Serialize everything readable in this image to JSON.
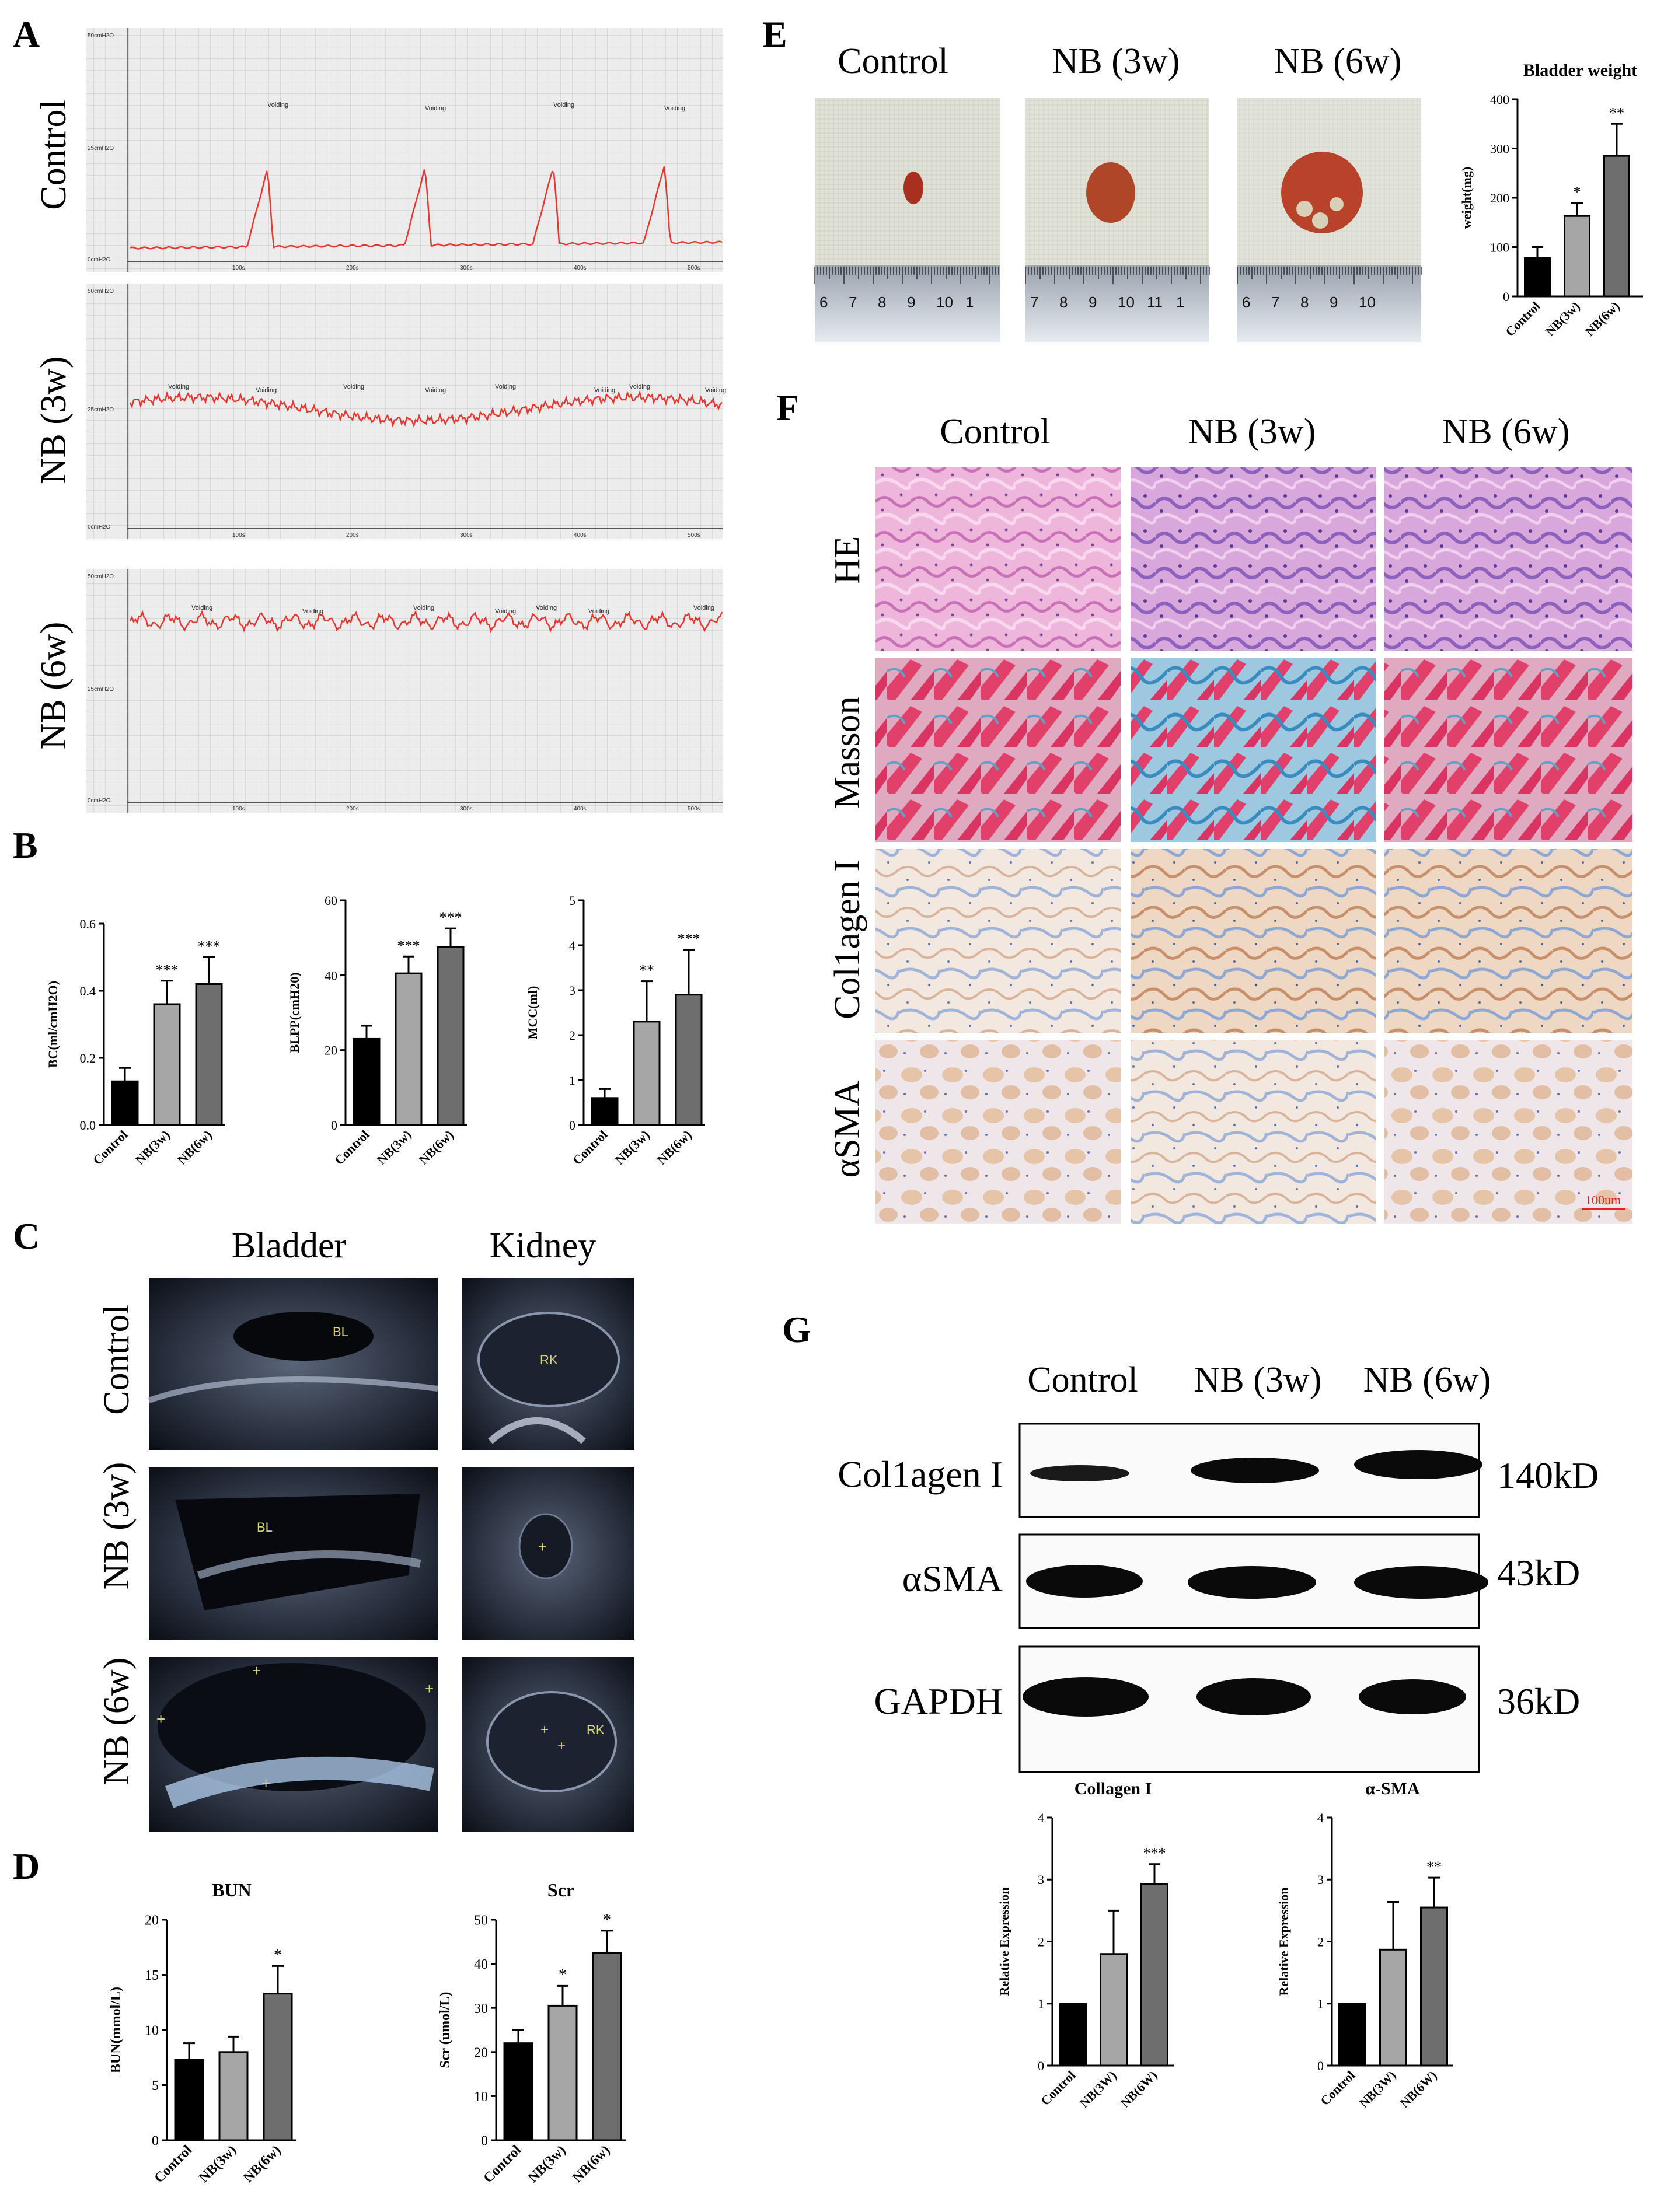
{
  "panel_letters": [
    "A",
    "B",
    "C",
    "D",
    "E",
    "F",
    "G"
  ],
  "colors": {
    "control": "#000000",
    "nb3w": "#a6a6a6",
    "nb6w": "#6e6e6e",
    "trace": "#e8362e",
    "grid_bg": "#ececec",
    "grid_line": "#b4b4b4"
  },
  "panel_a": {
    "rows": [
      "Control",
      "NB (3w)",
      "NB (6w)"
    ],
    "y_ticks": [
      "50cmH2O",
      "25cmH2O",
      "0cmH2O"
    ],
    "x_ticks": [
      "100s",
      "200s",
      "300s",
      "400s",
      "500s"
    ],
    "event_label": "Voiding"
  },
  "panel_c": {
    "columns": [
      "Bladder",
      "Kidney"
    ],
    "rows": [
      "Control",
      "NB (3w)",
      "NB (6w)"
    ],
    "labels": [
      "BL",
      "RK",
      "BL",
      "RK"
    ]
  },
  "panel_e": {
    "columns": [
      "Control",
      "NB (3w)",
      "NB (6w)"
    ],
    "ruler_ticks": [
      [
        "6",
        "7",
        "8",
        "9",
        "10",
        "1"
      ],
      [
        "7",
        "8",
        "9",
        "10",
        "11",
        "1"
      ],
      [
        "6",
        "7",
        "8",
        "9",
        "10"
      ]
    ]
  },
  "panel_f": {
    "columns": [
      "Control",
      "NB (3w)",
      "NB (6w)"
    ],
    "rows": [
      "HE",
      "Masson",
      "Col1agen I",
      "αSMA"
    ],
    "scale_bar": "100um"
  },
  "panel_g": {
    "columns": [
      "Control",
      "NB (3w)",
      "NB (6w)"
    ],
    "proteins": [
      "Col1agen I",
      "αSMA",
      "GAPDH"
    ],
    "sizes": [
      "140kD",
      "43kD",
      "36kD"
    ]
  },
  "chart_data": [
    {
      "id": "bc",
      "panel": "B",
      "type": "bar",
      "title": "",
      "ylabel": "BC(ml/cmH2O)",
      "categories": [
        "Control",
        "NB(3w)",
        "NB(6w)"
      ],
      "values": [
        0.13,
        0.36,
        0.42
      ],
      "errors": [
        0.04,
        0.07,
        0.08
      ],
      "sig": [
        "",
        "***",
        "***"
      ],
      "ylim": [
        0,
        0.6
      ],
      "yticks": [
        "0.0",
        "0.2",
        "0.4",
        "0.6"
      ]
    },
    {
      "id": "blpp",
      "panel": "B",
      "type": "bar",
      "title": "",
      "ylabel": "BLPP(cmH20)",
      "categories": [
        "Control",
        "NB(3w)",
        "NB(6w)"
      ],
      "values": [
        23,
        40.5,
        47.5
      ],
      "errors": [
        3.5,
        4.5,
        5
      ],
      "sig": [
        "",
        "***",
        "***"
      ],
      "ylim": [
        0,
        60
      ],
      "yticks": [
        "0",
        "20",
        "40",
        "60"
      ]
    },
    {
      "id": "mcc",
      "panel": "B",
      "type": "bar",
      "title": "",
      "ylabel": "MCC(ml)",
      "categories": [
        "Control",
        "NB(3w)",
        "NB(6w)"
      ],
      "values": [
        0.6,
        2.3,
        2.9
      ],
      "errors": [
        0.2,
        0.9,
        1.0
      ],
      "sig": [
        "",
        "**",
        "***"
      ],
      "ylim": [
        0,
        5
      ],
      "yticks": [
        "0",
        "1",
        "2",
        "3",
        "4",
        "5"
      ]
    },
    {
      "id": "bun",
      "panel": "D",
      "type": "bar",
      "title": "BUN",
      "ylabel": "BUN(mmol/L)",
      "categories": [
        "Control",
        "NB(3w)",
        "NB(6w)"
      ],
      "values": [
        7.3,
        8.0,
        13.3
      ],
      "errors": [
        1.5,
        1.4,
        2.5
      ],
      "sig": [
        "",
        "",
        "*"
      ],
      "ylim": [
        0,
        20
      ],
      "yticks": [
        "0",
        "5",
        "10",
        "15",
        "20"
      ]
    },
    {
      "id": "scr",
      "panel": "D",
      "type": "bar",
      "title": "Scr",
      "ylabel": "Scr (umol/L)",
      "categories": [
        "Control",
        "NB(3w)",
        "NB(6w)"
      ],
      "values": [
        22,
        30.5,
        42.5
      ],
      "errors": [
        3,
        4.5,
        5
      ],
      "sig": [
        "",
        "*",
        "*"
      ],
      "ylim": [
        0,
        50
      ],
      "yticks": [
        "0",
        "10",
        "20",
        "30",
        "40",
        "50"
      ]
    },
    {
      "id": "bw",
      "panel": "E",
      "type": "bar",
      "title": "Bladder weight",
      "ylabel": "weight(mg)",
      "categories": [
        "Control",
        "NB(3w)",
        "NB(6w)"
      ],
      "values": [
        78,
        163,
        285
      ],
      "errors": [
        22,
        27,
        65
      ],
      "sig": [
        "",
        "*",
        "**"
      ],
      "ylim": [
        0,
        400
      ],
      "yticks": [
        "0",
        "100",
        "200",
        "300",
        "400"
      ]
    },
    {
      "id": "col",
      "panel": "G",
      "type": "bar",
      "title": "Collagen I",
      "ylabel": "Relative Expression",
      "categories": [
        "Control",
        "NB(3W)",
        "NB(6W)"
      ],
      "values": [
        1.0,
        1.8,
        2.93
      ],
      "errors": [
        0,
        0.7,
        0.32
      ],
      "sig": [
        "",
        "",
        "***"
      ],
      "ylim": [
        0,
        4
      ],
      "yticks": [
        "0",
        "1",
        "2",
        "3",
        "4"
      ]
    },
    {
      "id": "sma",
      "panel": "G",
      "type": "bar",
      "title": "α-SMA",
      "ylabel": "Relative Expression",
      "categories": [
        "Control",
        "NB(3W)",
        "NB(6W)"
      ],
      "values": [
        1.0,
        1.87,
        2.55
      ],
      "errors": [
        0,
        0.77,
        0.48
      ],
      "sig": [
        "",
        "",
        "**"
      ],
      "ylim": [
        0,
        4
      ],
      "yticks": [
        "0",
        "1",
        "2",
        "3",
        "4"
      ]
    }
  ]
}
